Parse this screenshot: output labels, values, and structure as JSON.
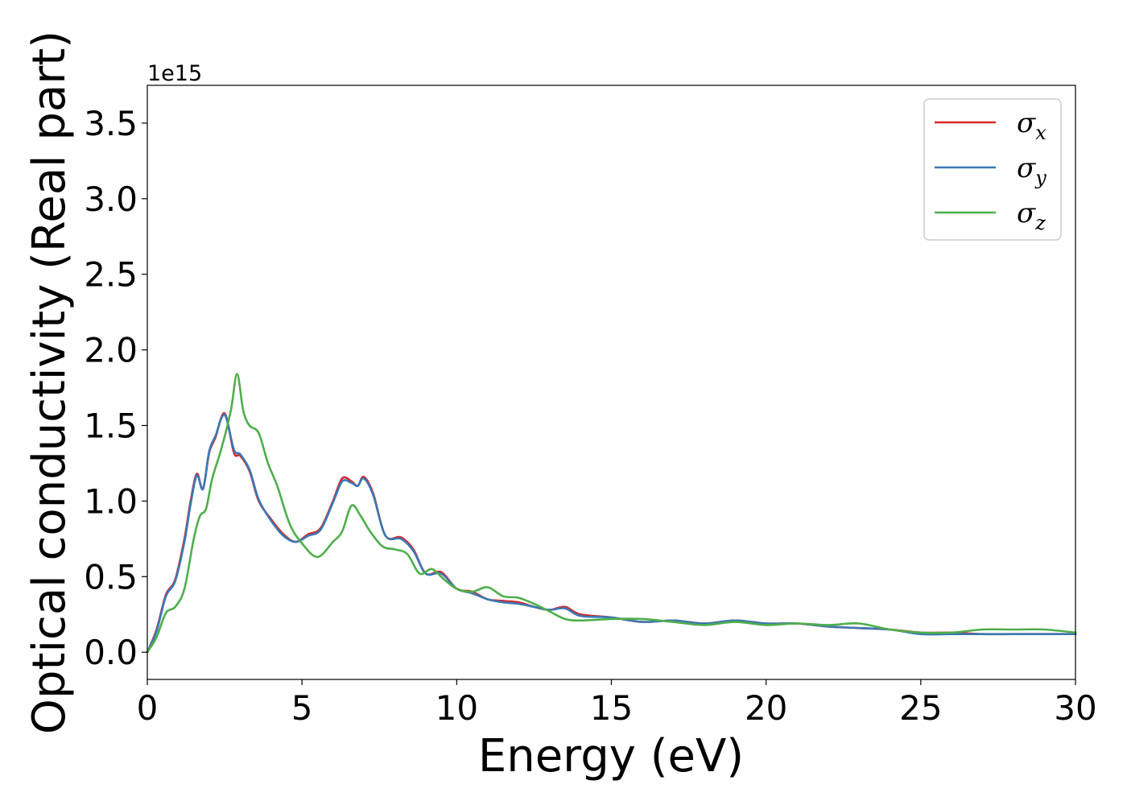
{
  "chart_data": {
    "type": "line",
    "xlabel": "Energy (eV)",
    "ylabel": "Optical conductivity (Real part)",
    "y_offset_label": "1e15",
    "xlim": [
      0,
      30
    ],
    "ylim": [
      -0.18,
      3.75
    ],
    "x_ticks": [
      0,
      5,
      10,
      15,
      20,
      25,
      30
    ],
    "y_ticks": [
      0.0,
      0.5,
      1.0,
      1.5,
      2.0,
      2.5,
      3.0,
      3.5
    ],
    "x_tick_labels": [
      "0",
      "5",
      "10",
      "15",
      "20",
      "25",
      "30"
    ],
    "y_tick_labels": [
      "0.0",
      "0.5",
      "1.0",
      "1.5",
      "2.0",
      "2.5",
      "3.0",
      "3.5"
    ],
    "grid": false,
    "legend_position": "top-right",
    "colors": {
      "sigma_x": "#d62728",
      "sigma_y": "#3b78b4",
      "sigma_z": "#4daf4a"
    },
    "series": [
      {
        "name": "σx",
        "symbol": "σ",
        "subscript": "x",
        "color": "#d62728",
        "x": [
          0,
          0.3,
          0.6,
          0.9,
          1.2,
          1.4,
          1.6,
          1.8,
          2.0,
          2.2,
          2.5,
          2.8,
          3.0,
          3.3,
          3.6,
          4.0,
          4.4,
          4.8,
          5.2,
          5.6,
          6.0,
          6.3,
          6.6,
          6.8,
          7.0,
          7.3,
          7.7,
          8.2,
          8.6,
          9.0,
          9.5,
          10.0,
          10.5,
          11.0,
          11.5,
          12.0,
          12.5,
          13.0,
          13.5,
          14.0,
          15.0,
          16.0,
          17.0,
          18.0,
          19.0,
          20.0,
          21.0,
          22.0,
          23.0,
          24.0,
          25.0,
          26.0,
          27.0,
          28.0,
          29.0,
          30.0
        ],
        "y": [
          0.0,
          0.15,
          0.38,
          0.48,
          0.75,
          1.0,
          1.18,
          1.08,
          1.32,
          1.42,
          1.58,
          1.32,
          1.3,
          1.2,
          1.0,
          0.88,
          0.78,
          0.73,
          0.78,
          0.82,
          1.0,
          1.15,
          1.13,
          1.1,
          1.16,
          1.05,
          0.77,
          0.76,
          0.68,
          0.52,
          0.53,
          0.42,
          0.4,
          0.35,
          0.34,
          0.33,
          0.3,
          0.28,
          0.3,
          0.25,
          0.23,
          0.2,
          0.21,
          0.19,
          0.21,
          0.19,
          0.19,
          0.17,
          0.16,
          0.15,
          0.13,
          0.13,
          0.12,
          0.12,
          0.12,
          0.12
        ]
      },
      {
        "name": "σy",
        "symbol": "σ",
        "subscript": "y",
        "color": "#3b78b4",
        "x": [
          0,
          0.3,
          0.6,
          0.9,
          1.2,
          1.4,
          1.6,
          1.8,
          2.0,
          2.2,
          2.5,
          2.8,
          3.0,
          3.3,
          3.6,
          4.0,
          4.4,
          4.8,
          5.2,
          5.6,
          6.0,
          6.3,
          6.6,
          6.8,
          7.0,
          7.3,
          7.7,
          8.2,
          8.6,
          9.0,
          9.5,
          10.0,
          10.5,
          11.0,
          11.5,
          12.0,
          12.5,
          13.0,
          13.5,
          14.0,
          15.0,
          16.0,
          17.0,
          18.0,
          19.0,
          20.0,
          21.0,
          22.0,
          23.0,
          24.0,
          25.0,
          26.0,
          27.0,
          28.0,
          29.0,
          30.0
        ],
        "y": [
          0.0,
          0.14,
          0.37,
          0.47,
          0.73,
          0.98,
          1.17,
          1.08,
          1.33,
          1.43,
          1.57,
          1.34,
          1.31,
          1.21,
          1.01,
          0.87,
          0.77,
          0.73,
          0.77,
          0.81,
          0.99,
          1.13,
          1.12,
          1.1,
          1.15,
          1.04,
          0.77,
          0.75,
          0.67,
          0.52,
          0.52,
          0.42,
          0.39,
          0.35,
          0.33,
          0.32,
          0.3,
          0.28,
          0.29,
          0.24,
          0.23,
          0.2,
          0.21,
          0.19,
          0.21,
          0.19,
          0.19,
          0.17,
          0.16,
          0.15,
          0.12,
          0.12,
          0.12,
          0.12,
          0.12,
          0.12
        ]
      },
      {
        "name": "σz",
        "symbol": "σ",
        "subscript": "z",
        "color": "#4daf4a",
        "x": [
          0,
          0.3,
          0.6,
          0.9,
          1.2,
          1.5,
          1.7,
          1.9,
          2.1,
          2.4,
          2.7,
          2.9,
          3.1,
          3.3,
          3.6,
          3.9,
          4.2,
          4.6,
          5.0,
          5.5,
          6.0,
          6.3,
          6.6,
          6.9,
          7.2,
          7.6,
          8.0,
          8.4,
          8.8,
          9.2,
          9.6,
          10.0,
          10.5,
          11.0,
          11.5,
          12.0,
          12.5,
          13.0,
          13.5,
          14.0,
          15.0,
          16.0,
          17.0,
          18.0,
          19.0,
          20.0,
          21.0,
          22.0,
          23.0,
          24.0,
          25.0,
          26.0,
          27.0,
          28.0,
          29.0,
          30.0
        ],
        "y": [
          0.0,
          0.1,
          0.26,
          0.3,
          0.42,
          0.75,
          0.9,
          0.95,
          1.15,
          1.35,
          1.6,
          1.84,
          1.6,
          1.5,
          1.45,
          1.25,
          1.1,
          0.85,
          0.72,
          0.63,
          0.73,
          0.8,
          0.97,
          0.9,
          0.8,
          0.7,
          0.68,
          0.65,
          0.52,
          0.55,
          0.48,
          0.42,
          0.4,
          0.43,
          0.37,
          0.36,
          0.32,
          0.27,
          0.22,
          0.21,
          0.22,
          0.22,
          0.2,
          0.18,
          0.2,
          0.18,
          0.19,
          0.18,
          0.19,
          0.15,
          0.13,
          0.13,
          0.15,
          0.15,
          0.15,
          0.13
        ]
      }
    ]
  }
}
